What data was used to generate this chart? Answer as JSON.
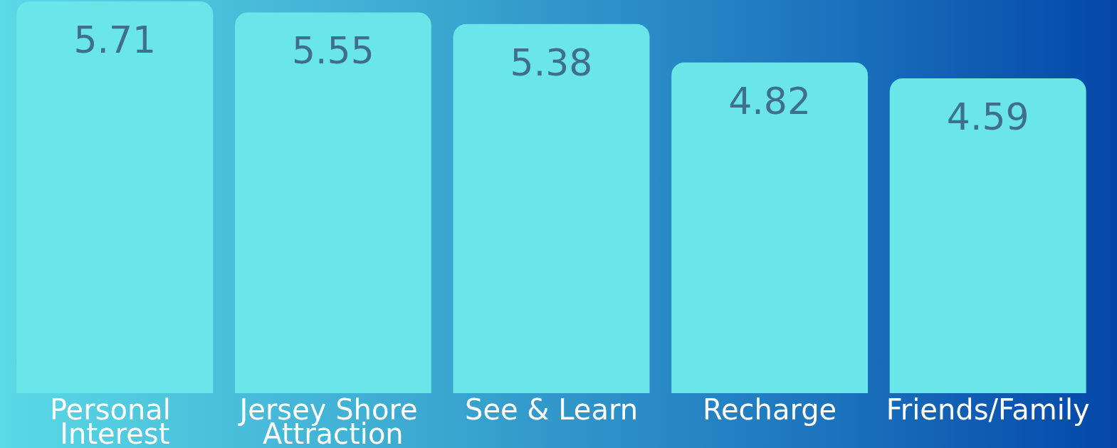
{
  "chart_data": {
    "type": "bar",
    "categories": [
      "Personal Interest",
      "Jersey Shore Attraction",
      "See & Learn",
      "Recharge",
      "Friends/Family"
    ],
    "values": [
      5.71,
      5.55,
      5.38,
      4.82,
      4.59
    ],
    "color": "#6ae5e8",
    "data_labels": true
  }
}
